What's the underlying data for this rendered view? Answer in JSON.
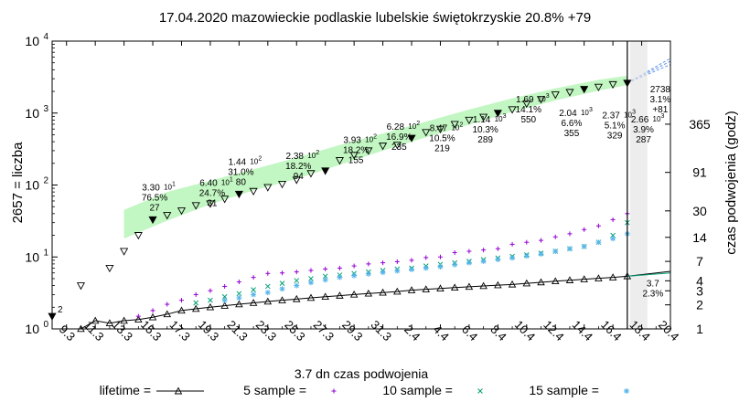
{
  "chart_data": {
    "type": "scatter",
    "title": "17.04.2020 mazowieckie podlaskie lubelskie świętokrzyskie 20.8% +79",
    "ylabel_left": "2657 = liczba",
    "ylabel_right": "czas podwojenia (godz)",
    "xlabel": "3.7 dn czas podwojenia",
    "y_scale": "log",
    "ylim": [
      1,
      10000
    ],
    "xlim": [
      0,
      43
    ],
    "x_tick_labels": [
      "9.3",
      "11.3",
      "13.3",
      "15.3",
      "17.3",
      "19.3",
      "21.3",
      "23.3",
      "25.3",
      "27.3",
      "29.3",
      "31.3",
      "2.4",
      "4.4",
      "6.4",
      "8.4",
      "10.4",
      "12.4",
      "14.4",
      "16.4",
      "18.4",
      "20.4"
    ],
    "y_left_ticks": [
      {
        "label": "10",
        "exp": "0",
        "value": 1
      },
      {
        "label": "10",
        "exp": "1",
        "value": 10
      },
      {
        "label": "10",
        "exp": "2",
        "value": 100
      },
      {
        "label": "10",
        "exp": "3",
        "value": 1000
      },
      {
        "label": "10",
        "exp": "4",
        "value": 10000
      }
    ],
    "y_right_ticks": [
      {
        "label": "1",
        "value": 1
      },
      {
        "label": "2",
        "value": 2
      },
      {
        "label": "3",
        "value": 3
      },
      {
        "label": "4",
        "value": 4
      },
      {
        "label": "7",
        "value": 7
      },
      {
        "label": "14",
        "value": 14
      },
      {
        "label": "30",
        "value": 30
      },
      {
        "label": "91",
        "value": 91
      },
      {
        "label": "365",
        "value": 365
      }
    ],
    "cases": {
      "x": [
        0,
        2,
        4,
        5,
        6,
        7,
        8,
        9,
        10,
        11,
        12,
        13,
        14,
        15,
        16,
        17,
        18,
        19,
        20,
        21,
        22,
        23,
        24,
        25,
        26,
        27,
        28,
        29,
        30,
        31,
        32,
        33,
        34,
        35,
        36,
        37,
        38,
        39,
        40
      ],
      "y": [
        1.5,
        4,
        7,
        12,
        20,
        33,
        38,
        44,
        52,
        55,
        64,
        75,
        82,
        93,
        103,
        118,
        145,
        158,
        220,
        260,
        300,
        350,
        360,
        450,
        540,
        600,
        700,
        800,
        880,
        1000,
        1120,
        1350,
        1550,
        1800,
        1950,
        2150,
        2300,
        2500,
        2620
      ],
      "filled": [
        true,
        false,
        false,
        false,
        false,
        true,
        false,
        false,
        false,
        false,
        false,
        true,
        false,
        false,
        false,
        false,
        false,
        true,
        false,
        false,
        false,
        false,
        false,
        true,
        false,
        false,
        false,
        false,
        false,
        true,
        false,
        false,
        false,
        false,
        false,
        true,
        false,
        false,
        false
      ]
    },
    "lifetime": {
      "x": [
        2,
        3,
        4,
        5,
        6,
        7,
        8,
        9,
        10,
        11,
        12,
        13,
        14,
        15,
        16,
        17,
        18,
        19,
        20,
        21,
        22,
        23,
        24,
        25,
        26,
        27,
        28,
        29,
        30,
        31,
        32,
        33,
        34,
        35,
        36,
        37,
        38,
        39,
        40
      ],
      "y": [
        1.0,
        1.3,
        1.2,
        1.3,
        1.35,
        1.45,
        1.6,
        1.8,
        1.9,
        2.0,
        2.1,
        2.2,
        2.3,
        2.4,
        2.5,
        2.6,
        2.7,
        2.8,
        2.9,
        3.0,
        3.1,
        3.2,
        3.3,
        3.45,
        3.55,
        3.65,
        3.75,
        3.85,
        3.95,
        4.05,
        4.15,
        4.3,
        4.45,
        4.6,
        4.75,
        4.9,
        5.05,
        5.2,
        5.4
      ]
    },
    "sample5": {
      "x": [
        6,
        7,
        8,
        9,
        10,
        11,
        12,
        13,
        14,
        15,
        16,
        17,
        18,
        19,
        20,
        21,
        22,
        23,
        24,
        25,
        26,
        27,
        28,
        29,
        30,
        31,
        32,
        33,
        34,
        35,
        36,
        37,
        38,
        39,
        40
      ],
      "y": [
        1.5,
        1.8,
        2.2,
        2.5,
        3.0,
        3.4,
        3.9,
        4.5,
        5.2,
        5.9,
        6.0,
        6.2,
        6.5,
        6.8,
        7.0,
        7.5,
        8.0,
        8.3,
        8.6,
        9.0,
        9.8,
        10.0,
        11.5,
        12.0,
        12.5,
        13.0,
        15.0,
        16.0,
        17.0,
        19.0,
        21.0,
        24.0,
        27.0,
        33.0,
        40.0
      ]
    },
    "sample10": {
      "x": [
        10,
        11,
        12,
        13,
        14,
        15,
        16,
        17,
        18,
        19,
        20,
        21,
        22,
        23,
        24,
        25,
        26,
        27,
        28,
        29,
        30,
        31,
        32,
        33,
        34,
        35,
        36,
        37,
        38,
        39,
        40
      ],
      "y": [
        2.3,
        2.5,
        2.8,
        3.1,
        3.5,
        3.9,
        4.3,
        4.7,
        5.0,
        5.4,
        5.6,
        5.9,
        6.2,
        6.5,
        6.8,
        7.0,
        7.5,
        7.9,
        8.3,
        8.7,
        9.2,
        9.7,
        10.2,
        10.7,
        11.3,
        12.0,
        13.0,
        14.0,
        16.0,
        20.0,
        30.0
      ]
    },
    "sample15": {
      "x": [
        12,
        13,
        14,
        15,
        16,
        17,
        18,
        19,
        20,
        21,
        22,
        23,
        24,
        25,
        26,
        27,
        28,
        29,
        30,
        31,
        32,
        33,
        34,
        35,
        36,
        37,
        38,
        39,
        40
      ],
      "y": [
        2.5,
        2.7,
        3.0,
        3.2,
        3.6,
        4.0,
        4.4,
        4.8,
        5.2,
        5.5,
        5.8,
        6.1,
        6.4,
        6.7,
        7.0,
        7.3,
        7.8,
        8.3,
        8.7,
        9.2,
        9.7,
        10.3,
        11.0,
        12.0,
        13.0,
        14.0,
        16.0,
        18.0,
        21.0
      ]
    },
    "forecast_band": {
      "x": [
        5,
        8,
        11,
        14,
        17,
        20,
        23,
        26,
        29,
        32,
        35,
        38,
        40
      ],
      "low": [
        18,
        32,
        54,
        84,
        122,
        190,
        300,
        460,
        690,
        1040,
        1500,
        2050,
        2450
      ],
      "high": [
        45,
        80,
        115,
        165,
        240,
        360,
        520,
        760,
        1120,
        1600,
        2200,
        2900,
        3300
      ]
    },
    "annotations": [
      {
        "x": 7,
        "y": 33,
        "lines": [
          "3.30",
          "76.5%",
          "27"
        ],
        "sup": "1"
      },
      {
        "x": 11,
        "y": 38,
        "lines": [
          "6.40",
          "24.7%",
          "31"
        ],
        "sup": "1"
      },
      {
        "x": 13,
        "y": 75,
        "lines": [
          "1.44",
          "31.0%",
          "80"
        ],
        "sup": "2"
      },
      {
        "x": 17,
        "y": 90,
        "lines": [
          "2.38",
          "18.2%",
          "94"
        ],
        "sup": "2"
      },
      {
        "x": 21,
        "y": 150,
        "lines": [
          "3.93",
          "18.2%",
          "155"
        ],
        "sup": "2"
      },
      {
        "x": 24,
        "y": 230,
        "lines": [
          "6.28",
          "16.9%",
          "235"
        ],
        "sup": "2"
      },
      {
        "x": 27,
        "y": 220,
        "lines": [
          "8.47",
          "10.5%",
          "219"
        ],
        "sup": "2"
      },
      {
        "x": 30,
        "y": 290,
        "lines": [
          "1.14",
          "10.3%",
          "289"
        ],
        "sup": "3"
      },
      {
        "x": 33,
        "y": 550,
        "lines": [
          "1.69",
          "14.1%",
          "550"
        ],
        "sup": "3"
      },
      {
        "x": 36,
        "y": 355,
        "lines": [
          "2.04",
          "6.6%",
          "355"
        ],
        "sup": "3"
      },
      {
        "x": 39,
        "y": 330,
        "lines": [
          "2.37",
          "5.1%",
          "329"
        ],
        "sup": "3"
      },
      {
        "x": 41,
        "y": 290,
        "lines": [
          "2.66",
          "3.9%",
          "287"
        ],
        "sup": "3"
      }
    ],
    "label_start": "2",
    "label_last_cases": [
      "2738",
      "3.1%",
      "+81"
    ],
    "label_doubling": [
      "3.7",
      "2.3%"
    ],
    "legend": [
      {
        "label": "lifetime =",
        "marker": "triangle-line"
      },
      {
        "label": "5 sample =",
        "marker": "plus"
      },
      {
        "label": "10 sample =",
        "marker": "x"
      },
      {
        "label": "15 sample =",
        "marker": "star"
      }
    ],
    "colors": {
      "cases": "#000000",
      "band": "#90ee90",
      "lifetime": "#000000",
      "sample5": "#9400d3",
      "sample10": "#009e73",
      "sample15": "#56b4e9",
      "forecast_line": "#6495ed"
    },
    "grid": false,
    "legend_position": "bottom"
  }
}
